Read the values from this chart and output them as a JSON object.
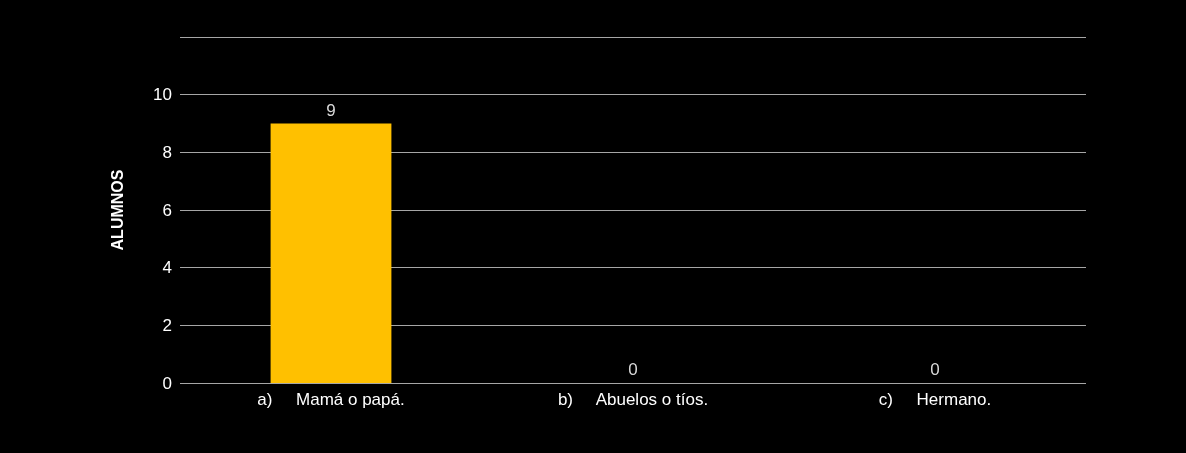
{
  "chart_data": {
    "type": "bar",
    "ylabel": "ALUMNOS",
    "categories": [
      "a)     Mamá o papá.",
      "b)     Abuelos o tíos.",
      "c)     Hermano."
    ],
    "values": [
      9,
      0,
      0
    ],
    "color": "#ffc000",
    "ylim": [
      0,
      12
    ],
    "yticks": [
      0,
      2,
      4,
      6,
      8,
      10,
      {
        "value": 12,
        "label": null
      }
    ],
    "grid": true,
    "data_labels": true
  }
}
